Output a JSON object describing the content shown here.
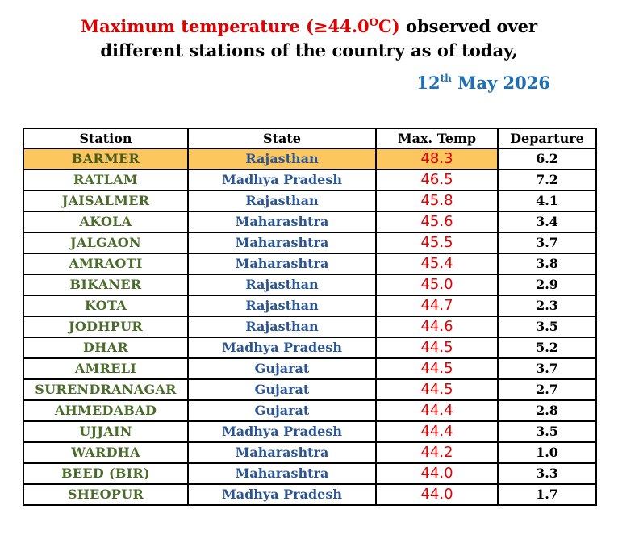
{
  "header": {
    "title_red": "Maximum temperature (≥44.0",
    "title_degree": "O",
    "title_c": "C)",
    "title_rest": " observed over",
    "title_line2": "different stations of the country as of today,",
    "date_day": "12",
    "date_suffix": "th",
    "date_rest": " May 2026"
  },
  "colors": {
    "title_red": "#e00000",
    "date_blue": "#1f6fb5",
    "station_green": "#4a6b2a",
    "state_blue": "#2b5592",
    "temp_red": "#e00000",
    "highlight": "#fcc75e"
  },
  "table": {
    "columns": [
      "Station",
      "State",
      "Max. Temp",
      "Departure"
    ],
    "rows": [
      {
        "station": "BARMER",
        "state": "Rajasthan",
        "max_temp": "48.3",
        "departure": "6.2",
        "highlighted": true
      },
      {
        "station": "RATLAM",
        "state": "Madhya Pradesh",
        "max_temp": "46.5",
        "departure": "7.2"
      },
      {
        "station": "JAISALMER",
        "state": "Rajasthan",
        "max_temp": "45.8",
        "departure": "4.1"
      },
      {
        "station": "AKOLA",
        "state": "Maharashtra",
        "max_temp": "45.6",
        "departure": "3.4"
      },
      {
        "station": "JALGAON",
        "state": "Maharashtra",
        "max_temp": "45.5",
        "departure": "3.7"
      },
      {
        "station": "AMRAOTI",
        "state": "Maharashtra",
        "max_temp": "45.4",
        "departure": "3.8"
      },
      {
        "station": "BIKANER",
        "state": "Rajasthan",
        "max_temp": "45.0",
        "departure": "2.9"
      },
      {
        "station": "KOTA",
        "state": "Rajasthan",
        "max_temp": "44.7",
        "departure": "2.3"
      },
      {
        "station": "JODHPUR",
        "state": "Rajasthan",
        "max_temp": "44.6",
        "departure": "3.5"
      },
      {
        "station": "DHAR",
        "state": "Madhya Pradesh",
        "max_temp": "44.5",
        "departure": "5.2"
      },
      {
        "station": "AMRELI",
        "state": "Gujarat",
        "max_temp": "44.5",
        "departure": "3.7"
      },
      {
        "station": "SURENDRANAGAR",
        "state": "Gujarat",
        "max_temp": "44.5",
        "departure": "2.7"
      },
      {
        "station": "AHMEDABAD",
        "state": "Gujarat",
        "max_temp": "44.4",
        "departure": "2.8"
      },
      {
        "station": "UJJAIN",
        "state": "Madhya Pradesh",
        "max_temp": "44.4",
        "departure": "3.5"
      },
      {
        "station": "WARDHA",
        "state": "Maharashtra",
        "max_temp": "44.2",
        "departure": "1.0"
      },
      {
        "station": "BEED (BIR)",
        "state": "Maharashtra",
        "max_temp": "44.0",
        "departure": "3.3"
      },
      {
        "station": "SHEOPUR",
        "state": "Madhya Pradesh",
        "max_temp": "44.0",
        "departure": "1.7"
      }
    ]
  }
}
